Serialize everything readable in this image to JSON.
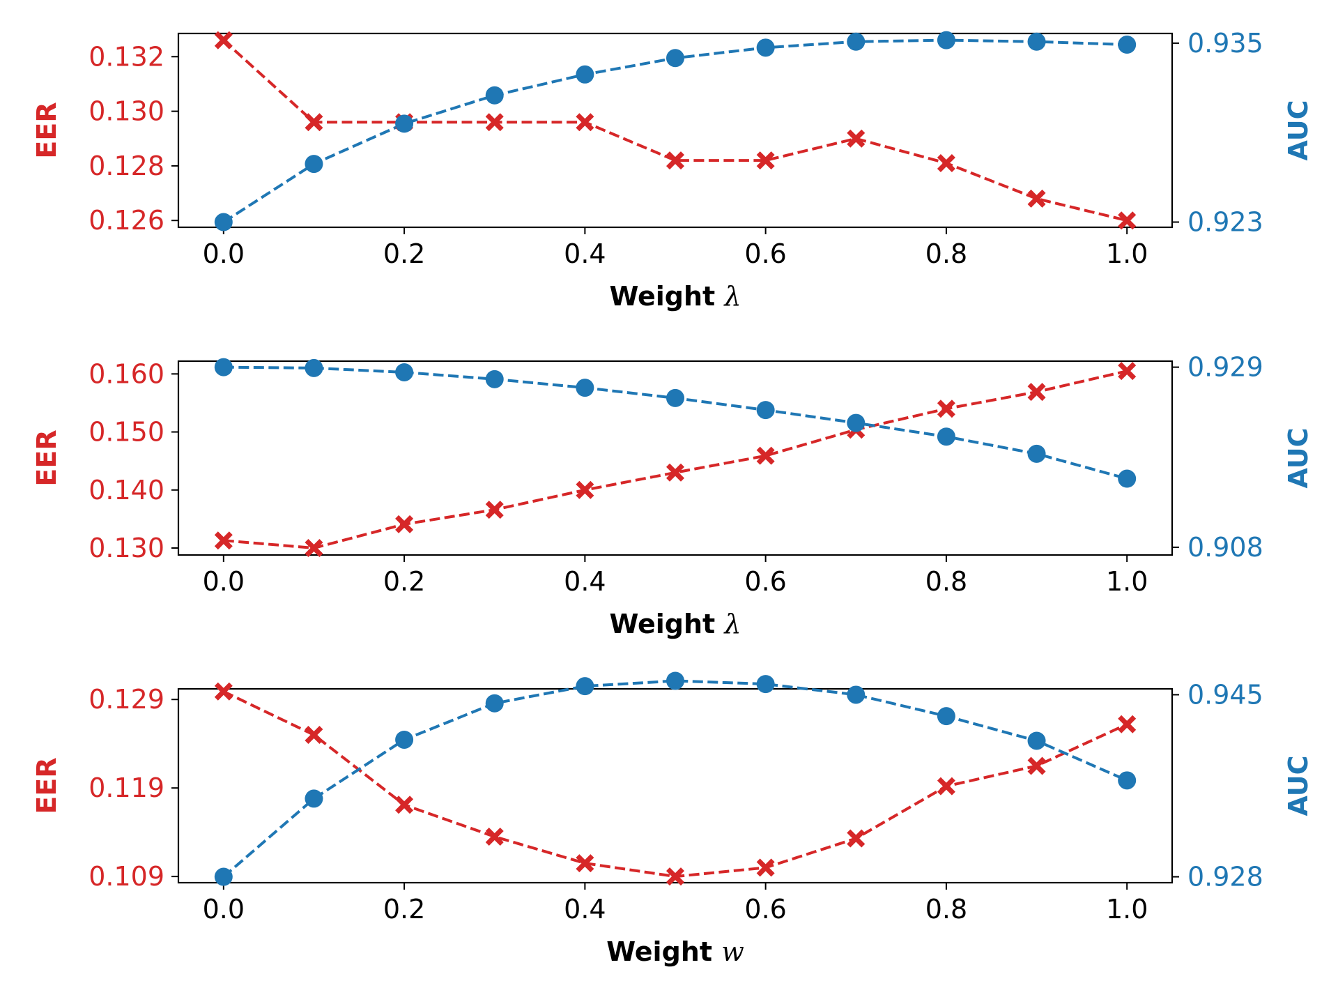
{
  "colors": {
    "eer": "#d62728",
    "auc": "#1f77b4",
    "axis": "#000000"
  },
  "chart_data": [
    {
      "type": "line",
      "x": [
        0.0,
        0.1,
        0.2,
        0.3,
        0.4,
        0.5,
        0.6,
        0.7,
        0.8,
        0.9,
        1.0
      ],
      "xticks": [
        "0.0",
        "0.2",
        "0.4",
        "0.6",
        "0.8",
        "1.0"
      ],
      "xlabel_text": "Weight ",
      "xlabel_symbol": "λ",
      "xlim": [
        -0.05,
        1.05
      ],
      "left_axis": {
        "label": "EER",
        "ylim": [
          0.12575,
          0.13285
        ],
        "ticks": [
          "0.126",
          "0.128",
          "0.130",
          "0.132"
        ],
        "series": {
          "name": "EER",
          "values": [
            0.1326,
            0.1296,
            0.1296,
            0.1296,
            0.1296,
            0.1282,
            0.1282,
            0.129,
            0.1281,
            0.1268,
            0.126
          ]
        }
      },
      "right_axis": {
        "label": "AUC",
        "ylim": [
          0.92265,
          0.93565
        ],
        "ticks": [
          "0.923",
          "0.935"
        ],
        "series": {
          "name": "AUC",
          "values": [
            0.923,
            0.9269,
            0.9296,
            0.9315,
            0.9329,
            0.934,
            0.9347,
            0.9351,
            0.9352,
            0.9351,
            0.9349
          ]
        }
      }
    },
    {
      "type": "line",
      "x": [
        0.0,
        0.1,
        0.2,
        0.3,
        0.4,
        0.5,
        0.6,
        0.7,
        0.8,
        0.9,
        1.0
      ],
      "xticks": [
        "0.0",
        "0.2",
        "0.4",
        "0.6",
        "0.8",
        "1.0"
      ],
      "xlabel_text": "Weight ",
      "xlabel_symbol": "λ",
      "xlim": [
        -0.05,
        1.05
      ],
      "left_axis": {
        "label": "EER",
        "ylim": [
          0.1288,
          0.1622
        ],
        "ticks": [
          "0.130",
          "0.140",
          "0.150",
          "0.160"
        ],
        "series": {
          "name": "EER",
          "values": [
            0.1313,
            0.13,
            0.1341,
            0.1366,
            0.14,
            0.143,
            0.1459,
            0.1504,
            0.154,
            0.1569,
            0.1605
          ]
        }
      },
      "right_axis": {
        "label": "AUC",
        "ylim": [
          0.9071,
          0.9297
        ],
        "ticks": [
          "0.908",
          "0.929"
        ],
        "series": {
          "name": "AUC",
          "values": [
            0.929,
            0.9289,
            0.9284,
            0.9276,
            0.9266,
            0.9254,
            0.924,
            0.9225,
            0.9209,
            0.9189,
            0.916
          ]
        }
      }
    },
    {
      "type": "line",
      "x": [
        0.0,
        0.1,
        0.2,
        0.3,
        0.4,
        0.5,
        0.6,
        0.7,
        0.8,
        0.9,
        1.0
      ],
      "xticks": [
        "0.0",
        "0.2",
        "0.4",
        "0.6",
        "0.8",
        "1.0"
      ],
      "xlabel_text": "Weight ",
      "xlabel_symbol": "w",
      "xlim": [
        -0.05,
        1.05
      ],
      "left_axis": {
        "label": "EER",
        "ylim": [
          0.1083,
          0.1302
        ],
        "ticks": [
          "0.109",
          "0.119",
          "0.129"
        ],
        "series": {
          "name": "EER",
          "values": [
            0.1299,
            0.125,
            0.1171,
            0.1135,
            0.1105,
            0.109,
            0.11,
            0.1133,
            0.1192,
            0.1215,
            0.1262
          ]
        }
      },
      "right_axis": {
        "label": "AUC",
        "ylim": [
          0.92745,
          0.94555
        ],
        "ticks": [
          "0.928",
          "0.945"
        ],
        "series": {
          "name": "AUC",
          "values": [
            0.928,
            0.9353,
            0.9408,
            0.9442,
            0.9458,
            0.9463,
            0.946,
            0.945,
            0.943,
            0.9407,
            0.937
          ]
        }
      }
    }
  ]
}
